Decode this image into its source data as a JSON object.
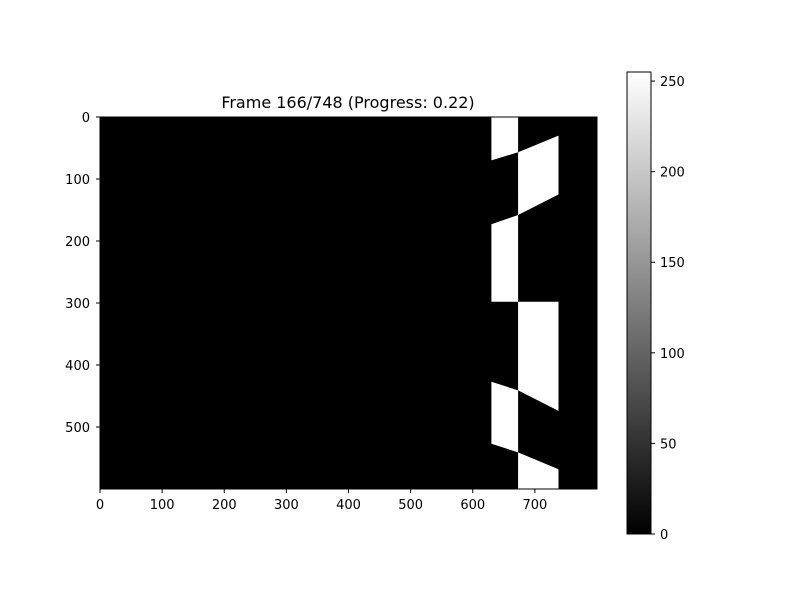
{
  "chart_data": {
    "type": "heatmap",
    "title": "Frame 166/748 (Progress: 0.22)",
    "image_extent": {
      "x": [
        0,
        800
      ],
      "y": [
        600,
        0
      ]
    },
    "colormap": "gray",
    "background_value": 0,
    "x_ticks": [
      0,
      100,
      200,
      300,
      400,
      500,
      600,
      700
    ],
    "y_ticks": [
      0,
      100,
      200,
      300,
      400,
      500
    ],
    "colorbar": {
      "range": [
        0,
        255
      ],
      "ticks": [
        0,
        50,
        100,
        150,
        200,
        250
      ]
    },
    "white_regions": [
      {
        "value": 255,
        "points": [
          [
            630,
            0
          ],
          [
            673,
            0
          ],
          [
            673,
            57
          ],
          [
            630,
            70
          ]
        ]
      },
      {
        "value": 255,
        "points": [
          [
            673,
            57
          ],
          [
            738,
            30
          ],
          [
            738,
            125
          ],
          [
            673,
            158
          ]
        ]
      },
      {
        "value": 255,
        "points": [
          [
            630,
            173
          ],
          [
            673,
            158
          ],
          [
            673,
            298
          ],
          [
            630,
            298
          ]
        ]
      },
      {
        "value": 255,
        "points": [
          [
            673,
            298
          ],
          [
            738,
            298
          ],
          [
            738,
            474
          ],
          [
            673,
            441
          ]
        ]
      },
      {
        "value": 255,
        "points": [
          [
            630,
            427
          ],
          [
            673,
            441
          ],
          [
            673,
            541
          ],
          [
            630,
            527
          ]
        ]
      },
      {
        "value": 255,
        "points": [
          [
            673,
            541
          ],
          [
            738,
            568
          ],
          [
            738,
            600
          ],
          [
            673,
            600
          ]
        ]
      }
    ]
  }
}
